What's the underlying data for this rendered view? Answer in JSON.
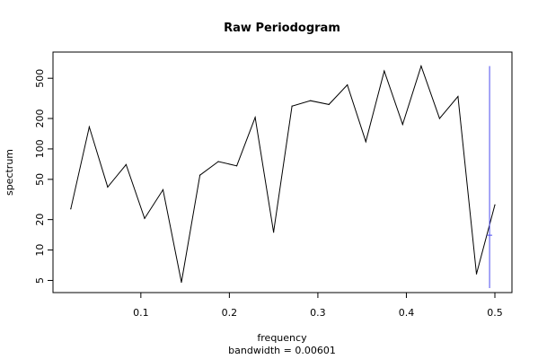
{
  "chart_data": {
    "type": "line",
    "title": "Raw Periodogram",
    "xlabel": "frequency",
    "xlabel_sub": "bandwidth = 0.00601",
    "ylabel": "spectrum",
    "y_scale": "log",
    "xlim": [
      0.02,
      0.5
    ],
    "ylim": [
      4.2,
      820
    ],
    "x_ticks": [
      0.1,
      0.2,
      0.3,
      0.4,
      0.5
    ],
    "x_tick_labels": [
      "0.1",
      "0.2",
      "0.3",
      "0.4",
      "0.5"
    ],
    "y_ticks": [
      5,
      10,
      20,
      50,
      100,
      200,
      500
    ],
    "y_tick_labels": [
      "5",
      "10",
      "20",
      "50",
      "100",
      "200",
      "500"
    ],
    "grid": false,
    "series": [
      {
        "color": "#000000",
        "x": [
          0.0208,
          0.0417,
          0.0625,
          0.0833,
          0.1042,
          0.125,
          0.1458,
          0.1667,
          0.1875,
          0.2083,
          0.2292,
          0.25,
          0.2708,
          0.2917,
          0.3125,
          0.3333,
          0.3542,
          0.375,
          0.3958,
          0.4167,
          0.4375,
          0.4583,
          0.4792,
          0.5
        ],
        "y": [
          25.5,
          165,
          42,
          70,
          20.5,
          39.5,
          4.8,
          55,
          75,
          68,
          205,
          15,
          265,
          300,
          275,
          430,
          118,
          590,
          175,
          660,
          200,
          330,
          5.8,
          28
        ]
      }
    ],
    "bandwidth_marker": {
      "color": "#4b4bef",
      "x": 0.494,
      "y_bottom": 4.2,
      "y_top": 660,
      "cross_y": 14,
      "cross_halfwidth": 0.003
    }
  }
}
